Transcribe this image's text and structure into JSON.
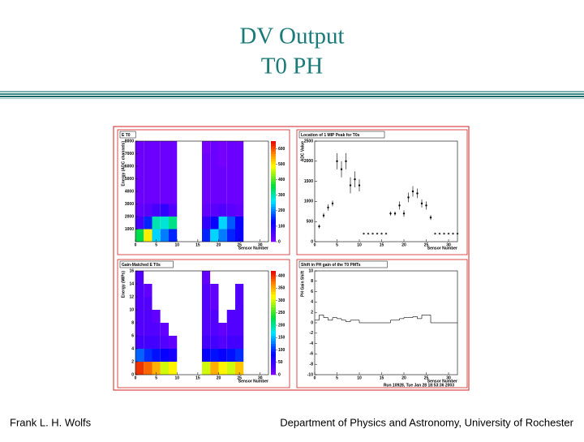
{
  "slide": {
    "title_lines": [
      "DV Output",
      "T0 PH"
    ],
    "footer_left": "Frank L. H. Wolfs",
    "footer_right": "Department of Physics and Astronomy, University of Rochester"
  },
  "chart_data": [
    {
      "type": "heatmap",
      "title": "E T0",
      "x_label": "Sensor Number",
      "y_label": "Energy (ADC channels)",
      "xlim": [
        0,
        32
      ],
      "xticks": [
        0,
        5,
        10,
        15,
        20,
        25,
        30
      ],
      "ylim": [
        0,
        8000
      ],
      "yticks": [
        1000,
        2000,
        3000,
        4000,
        5000,
        6000,
        7000,
        8000
      ],
      "xbins": [
        0,
        2,
        4,
        6,
        8,
        10,
        12,
        14,
        16,
        18,
        20,
        22,
        24,
        26,
        28,
        30,
        32
      ],
      "ybins": [
        0,
        1000,
        2000,
        3000,
        4000,
        5000,
        6000,
        7000,
        8000
      ],
      "zlim": [
        0,
        650
      ],
      "zticks": [
        0,
        100,
        200,
        300,
        400,
        500,
        600
      ],
      "z": [
        [
          350,
          500,
          250,
          200,
          150,
          null,
          null,
          null,
          150,
          250,
          200,
          150,
          120,
          null,
          null,
          null
        ],
        [
          60,
          150,
          300,
          280,
          320,
          null,
          null,
          null,
          80,
          120,
          250,
          180,
          120,
          null,
          null,
          null
        ],
        [
          30,
          40,
          60,
          80,
          50,
          null,
          null,
          null,
          30,
          40,
          50,
          40,
          30,
          null,
          null,
          null
        ],
        [
          20,
          20,
          20,
          20,
          20,
          null,
          null,
          null,
          20,
          20,
          20,
          20,
          20,
          null,
          null,
          null
        ],
        [
          20,
          20,
          20,
          20,
          20,
          null,
          null,
          null,
          20,
          20,
          20,
          20,
          20,
          null,
          null,
          null
        ],
        [
          20,
          20,
          20,
          20,
          20,
          null,
          null,
          null,
          20,
          20,
          20,
          20,
          20,
          null,
          null,
          null
        ],
        [
          20,
          20,
          20,
          20,
          20,
          null,
          null,
          null,
          20,
          20,
          10,
          20,
          20,
          null,
          null,
          null
        ],
        [
          20,
          20,
          20,
          20,
          20,
          null,
          null,
          null,
          10,
          20,
          10,
          20,
          20,
          null,
          null,
          null
        ]
      ]
    },
    {
      "type": "errorbar",
      "title": "Location of 1 MIP Peak for T0s",
      "x_label": "Sensor Number",
      "y_label": "ADC Value",
      "xlim": [
        0,
        32
      ],
      "xticks": [
        0,
        5,
        10,
        15,
        20,
        25,
        30
      ],
      "ylim": [
        0,
        2500
      ],
      "yticks": [
        0,
        500,
        1000,
        1500,
        2000,
        2500
      ],
      "x": [
        1,
        2,
        3,
        4,
        5,
        6,
        7,
        8,
        9,
        10,
        11,
        12,
        13,
        14,
        15,
        16,
        17,
        18,
        19,
        20,
        21,
        22,
        23,
        24,
        25,
        26,
        27,
        28,
        29,
        30,
        31,
        32
      ],
      "values": [
        380,
        650,
        850,
        950,
        2000,
        1800,
        2000,
        1400,
        1550,
        1400,
        200,
        200,
        200,
        200,
        200,
        200,
        700,
        700,
        900,
        700,
        1100,
        1250,
        1200,
        950,
        900,
        600,
        200,
        200,
        200,
        200,
        200,
        200
      ],
      "errors": [
        50,
        60,
        80,
        70,
        200,
        200,
        200,
        200,
        200,
        150,
        null,
        null,
        null,
        null,
        null,
        null,
        50,
        50,
        100,
        80,
        120,
        130,
        120,
        100,
        100,
        60,
        null,
        null,
        null,
        null,
        null,
        null
      ]
    },
    {
      "type": "heatmap",
      "title": "Gain-Matched E T0s",
      "x_label": "Sensor Number",
      "y_label": "Energy (MIPs)",
      "xlim": [
        0,
        32
      ],
      "xticks": [
        0,
        5,
        10,
        15,
        20,
        25,
        30
      ],
      "ylim": [
        0,
        16
      ],
      "yticks": [
        0,
        2,
        4,
        6,
        8,
        10,
        12,
        14,
        16
      ],
      "xbins": [
        0,
        2,
        4,
        6,
        8,
        10,
        12,
        14,
        16,
        18,
        20,
        22,
        24,
        26,
        28,
        30,
        32
      ],
      "ybins": [
        0,
        2,
        4,
        6,
        8,
        10,
        12,
        14,
        16
      ],
      "zlim": [
        0,
        420
      ],
      "zticks": [
        0,
        50,
        100,
        150,
        200,
        250,
        300,
        350,
        400
      ],
      "z": [
        [
          400,
          380,
          350,
          300,
          320,
          null,
          null,
          null,
          300,
          350,
          320,
          300,
          340,
          null,
          null,
          null
        ],
        [
          120,
          100,
          90,
          80,
          70,
          null,
          null,
          null,
          80,
          90,
          80,
          90,
          100,
          null,
          null,
          null
        ],
        [
          40,
          40,
          40,
          30,
          20,
          null,
          null,
          null,
          40,
          40,
          30,
          40,
          40,
          null,
          null,
          null
        ],
        [
          30,
          30,
          30,
          20,
          0,
          null,
          null,
          null,
          30,
          30,
          20,
          30,
          30,
          null,
          null,
          null
        ],
        [
          30,
          30,
          20,
          0,
          0,
          null,
          null,
          null,
          30,
          30,
          0,
          30,
          30,
          null,
          null,
          null
        ],
        [
          30,
          30,
          0,
          0,
          0,
          null,
          null,
          null,
          30,
          20,
          0,
          0,
          30,
          null,
          null,
          null
        ],
        [
          30,
          20,
          0,
          0,
          0,
          null,
          null,
          null,
          30,
          20,
          0,
          0,
          30,
          null,
          null,
          null
        ],
        [
          30,
          0,
          0,
          0,
          0,
          null,
          null,
          null,
          20,
          0,
          0,
          0,
          0,
          null,
          null,
          null
        ]
      ]
    },
    {
      "type": "step",
      "title": "Shift in PH gain of the T0 PMTs",
      "x_label": "Sensor Number",
      "y_label": "PH Gain Shift",
      "annotation": "Run 10928, Tue Jan 28 18:53:36 2003",
      "xlim": [
        0,
        32
      ],
      "xticks": [
        0,
        5,
        10,
        15,
        20,
        25,
        30
      ],
      "ylim": [
        -10,
        10
      ],
      "yticks": [
        -10,
        -8,
        -6,
        -4,
        -2,
        0,
        2,
        4,
        6,
        8,
        10
      ],
      "xbins": [
        0,
        1,
        2,
        3,
        4,
        5,
        6,
        7,
        8,
        9,
        10,
        11,
        12,
        13,
        14,
        15,
        16,
        17,
        18,
        19,
        20,
        21,
        22,
        23,
        24,
        25,
        26,
        27,
        28,
        29,
        30,
        31,
        32
      ],
      "values": [
        0.5,
        1.5,
        1,
        0.5,
        1,
        0.8,
        0.5,
        0.2,
        0.5,
        0.5,
        0,
        0,
        0,
        0,
        0,
        0,
        0,
        0.5,
        0.5,
        0.8,
        1,
        1,
        1.2,
        0.8,
        1.5,
        1.5,
        0,
        0,
        0,
        0,
        0,
        0
      ]
    }
  ]
}
